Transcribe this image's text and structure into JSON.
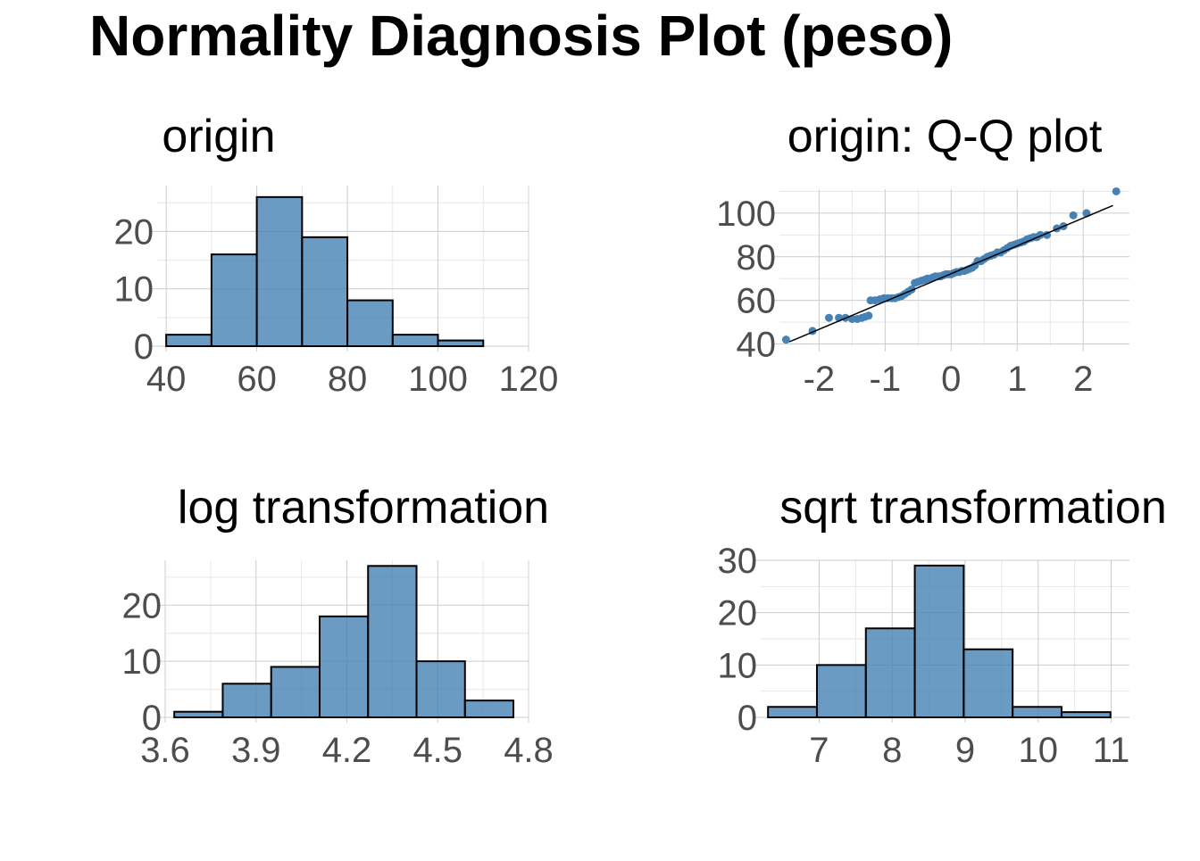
{
  "title": "Normality Diagnosis Plot (peso)",
  "colors": {
    "fill": "#4682B4",
    "fill_opacity": 0.8,
    "edge": "#000000",
    "grid": "#cccccc",
    "tick_text": "#4d4d4d"
  },
  "chart_data": [
    {
      "type": "bar",
      "title": "origin",
      "bins": [
        {
          "x0": 40,
          "x1": 50,
          "count": 2
        },
        {
          "x0": 50,
          "x1": 60,
          "count": 16
        },
        {
          "x0": 60,
          "x1": 70,
          "count": 26
        },
        {
          "x0": 70,
          "x1": 80,
          "count": 19
        },
        {
          "x0": 80,
          "x1": 90,
          "count": 8
        },
        {
          "x0": 90,
          "x1": 100,
          "count": 2
        },
        {
          "x0": 100,
          "x1": 110,
          "count": 1
        }
      ],
      "xlim": [
        38,
        120
      ],
      "ylim": [
        0,
        28
      ],
      "x_ticks": [
        40,
        60,
        80,
        100,
        120
      ],
      "x_tick_labels": [
        "40",
        "60",
        "80",
        "100",
        "120"
      ],
      "y_ticks": [
        0,
        10,
        20
      ],
      "y_tick_labels": [
        "0",
        "10",
        "20"
      ]
    },
    {
      "type": "scatter",
      "title": "origin: Q-Q plot",
      "points": [
        [
          -2.5,
          42
        ],
        [
          -2.1,
          46
        ],
        [
          -1.85,
          52
        ],
        [
          -1.7,
          52
        ],
        [
          -1.6,
          52
        ],
        [
          -1.5,
          51.5
        ],
        [
          -1.42,
          51.5
        ],
        [
          -1.35,
          52
        ],
        [
          -1.3,
          52.5
        ],
        [
          -1.25,
          53
        ],
        [
          -1.22,
          60
        ],
        [
          -1.15,
          60
        ],
        [
          -1.08,
          60.5
        ],
        [
          -1.02,
          61
        ],
        [
          -0.96,
          61
        ],
        [
          -0.9,
          61
        ],
        [
          -0.85,
          61
        ],
        [
          -0.8,
          61.5
        ],
        [
          -0.75,
          62
        ],
        [
          -0.7,
          63
        ],
        [
          -0.65,
          64
        ],
        [
          -0.6,
          65
        ],
        [
          -0.55,
          68
        ],
        [
          -0.5,
          68.5
        ],
        [
          -0.45,
          69
        ],
        [
          -0.4,
          69.5
        ],
        [
          -0.36,
          70
        ],
        [
          -0.32,
          70
        ],
        [
          -0.28,
          70.5
        ],
        [
          -0.24,
          71
        ],
        [
          -0.2,
          71
        ],
        [
          -0.16,
          71
        ],
        [
          -0.12,
          71.5
        ],
        [
          -0.08,
          72
        ],
        [
          -0.04,
          72
        ],
        [
          0.0,
          72
        ],
        [
          0.04,
          72.5
        ],
        [
          0.08,
          73
        ],
        [
          0.12,
          73
        ],
        [
          0.16,
          73.5
        ],
        [
          0.2,
          73.5
        ],
        [
          0.24,
          74
        ],
        [
          0.28,
          74.5
        ],
        [
          0.32,
          75
        ],
        [
          0.36,
          76
        ],
        [
          0.4,
          78
        ],
        [
          0.45,
          78
        ],
        [
          0.5,
          79
        ],
        [
          0.55,
          80
        ],
        [
          0.6,
          80.5
        ],
        [
          0.65,
          81
        ],
        [
          0.7,
          82
        ],
        [
          0.75,
          82
        ],
        [
          0.8,
          83
        ],
        [
          0.85,
          84
        ],
        [
          0.9,
          85
        ],
        [
          0.95,
          85.5
        ],
        [
          1.0,
          86
        ],
        [
          1.05,
          86.5
        ],
        [
          1.1,
          87
        ],
        [
          1.15,
          88
        ],
        [
          1.2,
          88.5
        ],
        [
          1.25,
          89
        ],
        [
          1.3,
          89
        ],
        [
          1.35,
          90
        ],
        [
          1.45,
          90
        ],
        [
          1.6,
          93
        ],
        [
          1.7,
          94
        ],
        [
          1.85,
          99
        ],
        [
          2.05,
          100
        ],
        [
          2.5,
          110
        ]
      ],
      "line": {
        "x0": -2.45,
        "y0": 41,
        "x1": 2.45,
        "y1": 103.5
      },
      "xlim": [
        -2.6,
        2.7
      ],
      "ylim": [
        39,
        111
      ],
      "x_ticks": [
        -2,
        -1,
        0,
        1,
        2
      ],
      "x_tick_labels": [
        "-2",
        "-1",
        "0",
        "1",
        "2"
      ],
      "y_ticks": [
        40,
        60,
        80,
        100
      ],
      "y_tick_labels": [
        "40",
        "60",
        "80",
        "100"
      ]
    },
    {
      "type": "bar",
      "title": "log transformation",
      "bins": [
        {
          "x0": 3.63,
          "x1": 3.79,
          "count": 1
        },
        {
          "x0": 3.79,
          "x1": 3.95,
          "count": 6
        },
        {
          "x0": 3.95,
          "x1": 4.11,
          "count": 9
        },
        {
          "x0": 4.11,
          "x1": 4.27,
          "count": 18
        },
        {
          "x0": 4.27,
          "x1": 4.43,
          "count": 27
        },
        {
          "x0": 4.43,
          "x1": 4.59,
          "count": 10
        },
        {
          "x0": 4.59,
          "x1": 4.75,
          "count": 3
        }
      ],
      "xlim": [
        3.6,
        4.8
      ],
      "ylim": [
        0,
        28
      ],
      "x_ticks": [
        3.6,
        3.9,
        4.2,
        4.5,
        4.8
      ],
      "x_tick_labels": [
        "3.6",
        "3.9",
        "4.2",
        "4.5",
        "4.8"
      ],
      "y_ticks": [
        0,
        10,
        20
      ],
      "y_tick_labels": [
        "0",
        "10",
        "20"
      ]
    },
    {
      "type": "bar",
      "title": "sqrt transformation",
      "bins": [
        {
          "x0": 6.3,
          "x1": 6.97,
          "count": 2
        },
        {
          "x0": 6.97,
          "x1": 7.64,
          "count": 10
        },
        {
          "x0": 7.64,
          "x1": 8.31,
          "count": 17
        },
        {
          "x0": 8.31,
          "x1": 8.98,
          "count": 29
        },
        {
          "x0": 8.98,
          "x1": 9.65,
          "count": 13
        },
        {
          "x0": 9.65,
          "x1": 10.32,
          "count": 2
        },
        {
          "x0": 10.32,
          "x1": 10.99,
          "count": 1
        }
      ],
      "xlim": [
        6.2,
        11.25
      ],
      "ylim": [
        0,
        30
      ],
      "x_ticks": [
        7,
        8,
        9,
        10,
        11
      ],
      "x_tick_labels": [
        "7",
        "8",
        "9",
        "10",
        "11"
      ],
      "y_ticks": [
        0,
        10,
        20,
        30
      ],
      "y_tick_labels": [
        "0",
        "10",
        "20",
        "30"
      ]
    }
  ]
}
